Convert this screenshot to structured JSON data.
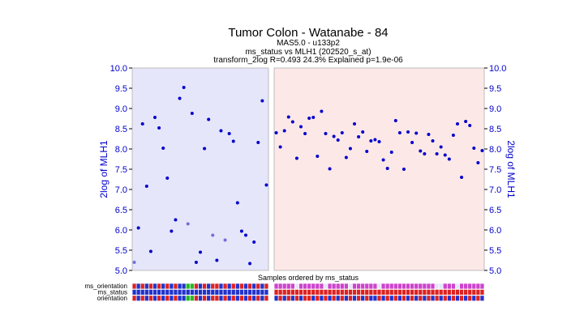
{
  "chart_data": {
    "type": "scatter",
    "title": "Tumor Colon  - Watanabe - 84",
    "subtitle_lines": [
      "MAS5.0 - u133p2",
      "ms_status vs MLH1 (202520_s_at)",
      "transform_2log R=0.493 24.3% Explained p=1.9e-06"
    ],
    "xlabel": "Samples ordered by ms_status",
    "ylabel_left": "2log of MLH1",
    "ylabel_right": "2log of MLH1",
    "ylim": [
      5.0,
      10.0
    ],
    "yticks": [
      "5.0",
      "5.5",
      "6.0",
      "6.5",
      "7.0",
      "7.5",
      "8.0",
      "8.5",
      "9.0",
      "9.5",
      "10.0"
    ],
    "groups": [
      {
        "background": "#e6e6fa",
        "values": [
          5.2,
          6.05,
          8.62,
          7.08,
          5.47,
          8.78,
          8.52,
          8.02,
          7.28,
          5.97,
          6.25,
          9.25,
          9.52,
          6.15,
          8.88,
          5.2,
          5.45,
          8.01,
          8.73,
          5.87,
          5.25,
          8.45,
          5.75,
          8.38,
          8.19,
          6.67,
          5.97,
          5.87,
          5.17,
          5.7,
          8.16,
          9.19,
          7.11
        ]
      },
      {
        "background": "#fde8e8",
        "values": [
          8.4,
          8.05,
          8.45,
          8.79,
          8.67,
          7.77,
          8.55,
          8.38,
          8.76,
          8.78,
          7.82,
          8.93,
          8.38,
          7.51,
          8.31,
          8.22,
          8.4,
          7.79,
          8.01,
          8.62,
          8.3,
          8.42,
          7.94,
          8.2,
          8.23,
          8.18,
          7.73,
          7.52,
          7.92,
          8.7,
          8.4,
          7.5,
          8.42,
          8.16,
          8.39,
          7.95,
          7.88,
          8.36,
          8.2,
          7.88,
          8.05,
          7.85,
          7.75,
          8.34,
          8.62,
          7.3,
          8.68,
          8.58,
          8.02,
          7.66,
          7.96
        ]
      }
    ],
    "point_color": "#0000cc",
    "faded_points": [
      {
        "group": 0,
        "index": 0
      },
      {
        "group": 0,
        "index": 13
      },
      {
        "group": 0,
        "index": 19
      },
      {
        "group": 0,
        "index": 22
      }
    ],
    "faded_color": "#7070d8",
    "tracks": [
      {
        "label": "ms_orientation",
        "groups": [
          [
            "R",
            "B",
            "R",
            "B",
            "R",
            "B",
            "R",
            "B",
            "R",
            "B",
            "R",
            "B",
            "B",
            "G",
            "G",
            "R",
            "B",
            "R",
            "B",
            "R",
            "R",
            "B",
            "R",
            "B",
            "R",
            "B",
            "R",
            "B",
            "R",
            "B",
            "R",
            "B",
            "R"
          ],
          [
            "M",
            "M",
            "M",
            "M",
            "M",
            "L",
            "M",
            "M",
            "M",
            "M",
            "M",
            "M",
            "L",
            "M",
            "M",
            "M",
            "M",
            "M",
            "L",
            "M",
            "M",
            "M",
            "M",
            "M",
            "M",
            "L",
            "M",
            "M",
            "M",
            "M",
            "M",
            "M",
            "M",
            "M",
            "M",
            "M",
            "M",
            "M",
            "M",
            "L",
            "L",
            "M",
            "M",
            "M",
            "L",
            "M",
            "M",
            "M",
            "M",
            "M",
            "M"
          ]
        ]
      },
      {
        "label": "ms_status",
        "groups": [
          [
            "B",
            "B",
            "B",
            "B",
            "B",
            "B",
            "B",
            "B",
            "B",
            "B",
            "B",
            "B",
            "B",
            "B",
            "B",
            "B",
            "B",
            "B",
            "B",
            "B",
            "B",
            "B",
            "B",
            "B",
            "B",
            "B",
            "B",
            "B",
            "B",
            "B",
            "B",
            "B",
            "B"
          ],
          [
            "R",
            "R",
            "R",
            "R",
            "R",
            "R",
            "R",
            "R",
            "R",
            "R",
            "R",
            "R",
            "R",
            "R",
            "R",
            "R",
            "R",
            "R",
            "R",
            "R",
            "R",
            "R",
            "R",
            "R",
            "R",
            "R",
            "R",
            "R",
            "R",
            "R",
            "R",
            "R",
            "R",
            "R",
            "R",
            "R",
            "R",
            "R",
            "R",
            "R",
            "R",
            "R",
            "R",
            "R",
            "R",
            "R",
            "R",
            "R",
            "R",
            "R",
            "R"
          ]
        ]
      },
      {
        "label": "orientation",
        "groups": [
          [
            "R",
            "B",
            "R",
            "B",
            "R",
            "B",
            "R",
            "B",
            "R",
            "B",
            "R",
            "B",
            "B",
            "G",
            "G",
            "R",
            "B",
            "R",
            "B",
            "R",
            "R",
            "B",
            "R",
            "B",
            "R",
            "B",
            "R",
            "B",
            "R",
            "B",
            "R",
            "B",
            "R"
          ],
          [
            "B",
            "R",
            "B",
            "R",
            "B",
            "R",
            "B",
            "R",
            "R",
            "B",
            "R",
            "B",
            "R",
            "B",
            "R",
            "B",
            "R",
            "B",
            "R",
            "B",
            "R",
            "B",
            "R",
            "B",
            "B",
            "R",
            "B",
            "R",
            "B",
            "R",
            "B",
            "R",
            "B",
            "R",
            "B",
            "R",
            "B",
            "R",
            "B",
            "R",
            "B",
            "R",
            "B",
            "R",
            "B",
            "R",
            "B",
            "R",
            "B",
            "R",
            "B"
          ]
        ]
      }
    ],
    "track_colors": {
      "R": "#dd2222",
      "B": "#2233cc",
      "G": "#22bb22",
      "M": "#cc44cc",
      "L": "#e6e6fa"
    }
  }
}
